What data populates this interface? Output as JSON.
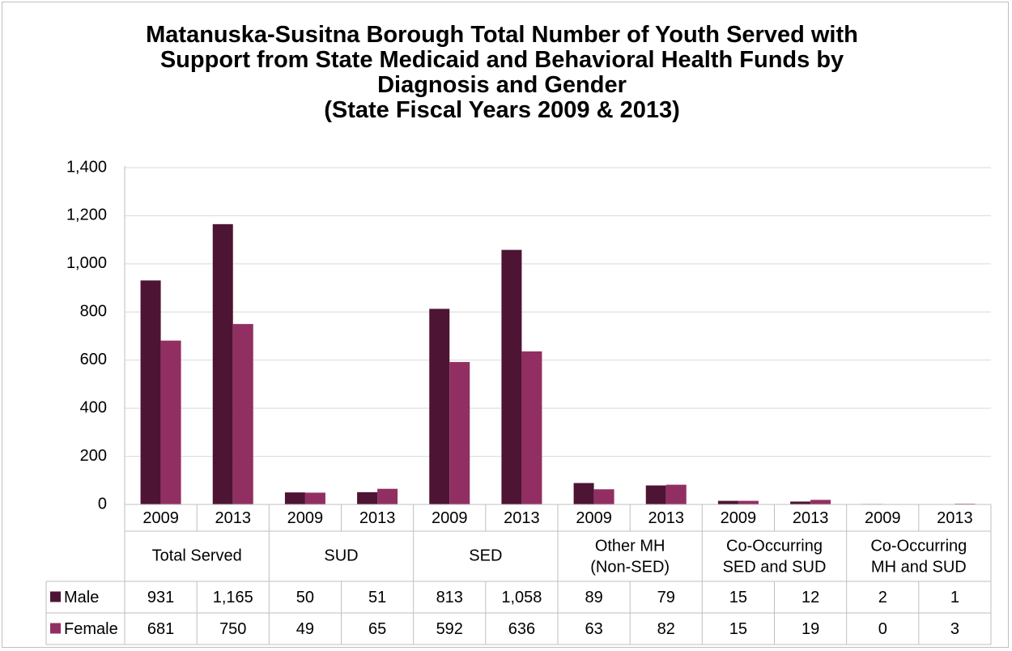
{
  "title_lines": [
    "Matanuska-Susitna Borough Total Number of Youth Served with",
    "Support from State Medicaid and Behavioral Health Funds by",
    "Diagnosis and Gender",
    "(State Fiscal Years 2009 & 2013)"
  ],
  "colors": {
    "male": "#4e1433",
    "female": "#922f62",
    "grid": "#d9d9d9",
    "axis": "#bfbfbf"
  },
  "chart_data": {
    "type": "bar",
    "title": "Matanuska-Susitna Borough Total Number of Youth Served with Support from State Medicaid and Behavioral Health Funds by Diagnosis and Gender (State Fiscal Years 2009 & 2013)",
    "ylim": [
      0,
      1400
    ],
    "yticks": [
      "0",
      "200",
      "400",
      "600",
      "800",
      "1,000",
      "1,200",
      "1,400"
    ],
    "grid": true,
    "legend": "data-table",
    "groups": [
      {
        "lines": [
          "Total Served"
        ],
        "years": [
          "2009",
          "2013"
        ]
      },
      {
        "lines": [
          "SUD"
        ],
        "years": [
          "2009",
          "2013"
        ]
      },
      {
        "lines": [
          "SED"
        ],
        "years": [
          "2009",
          "2013"
        ]
      },
      {
        "lines": [
          "Other MH",
          "(Non-SED)"
        ],
        "years": [
          "2009",
          "2013"
        ]
      },
      {
        "lines": [
          "Co-Occurring",
          "SED and SUD"
        ],
        "years": [
          "2009",
          "2013"
        ]
      },
      {
        "lines": [
          "Co-Occurring",
          "MH and SUD"
        ],
        "years": [
          "2009",
          "2013"
        ]
      }
    ],
    "series": [
      {
        "name": "Male",
        "values": [
          931,
          1165,
          50,
          51,
          813,
          1058,
          89,
          79,
          15,
          12,
          2,
          1
        ],
        "labels": [
          "931",
          "1,165",
          "50",
          "51",
          "813",
          "1,058",
          "89",
          "79",
          "15",
          "12",
          "2",
          "1"
        ]
      },
      {
        "name": "Female",
        "values": [
          681,
          750,
          49,
          65,
          592,
          636,
          63,
          82,
          15,
          19,
          0,
          3
        ],
        "labels": [
          "681",
          "750",
          "49",
          "65",
          "592",
          "636",
          "63",
          "82",
          "15",
          "19",
          "0",
          "3"
        ]
      }
    ]
  }
}
